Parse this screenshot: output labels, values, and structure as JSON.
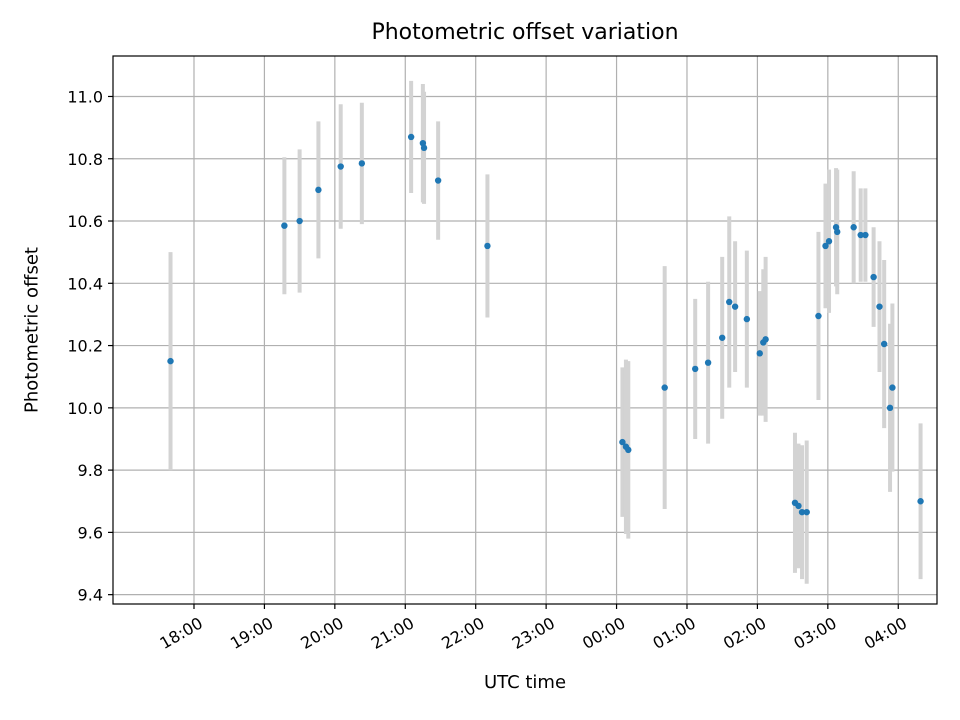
{
  "chart_data": {
    "type": "scatter",
    "title": "Photometric offset variation",
    "xlabel": "UTC time",
    "ylabel": "Photometric offset",
    "x_ticks": [
      "18:00",
      "19:00",
      "20:00",
      "21:00",
      "22:00",
      "23:00",
      "00:00",
      "01:00",
      "02:00",
      "03:00",
      "04:00"
    ],
    "y_ticks": [
      "9.4",
      "9.6",
      "9.8",
      "10.0",
      "10.2",
      "10.4",
      "10.6",
      "10.8",
      "11.0"
    ],
    "grid": true,
    "colors": {
      "point": "#1f77b4",
      "errorbar": "#d3d3d3",
      "grid": "#b0b0b0"
    },
    "x_start": "17:00",
    "x_range_hours": [
      -0.15,
      11.55
    ],
    "ylim": [
      9.37,
      11.13
    ],
    "series": [
      {
        "x": [
          "17:40",
          "19:17",
          "19:30",
          "19:46",
          "20:05",
          "20:23",
          "21:05",
          "21:15",
          "21:16",
          "21:28",
          "22:10",
          "00:05",
          "00:08",
          "00:10",
          "00:41",
          "01:07",
          "01:18",
          "01:30",
          "01:36",
          "01:41",
          "01:51",
          "02:02",
          "02:05",
          "02:07",
          "02:32",
          "02:35",
          "02:38",
          "02:42",
          "02:52",
          "02:58",
          "03:01",
          "03:07",
          "03:08",
          "03:22",
          "03:28",
          "03:32",
          "03:39",
          "03:44",
          "03:48",
          "03:53",
          "03:55",
          "04:19"
        ],
        "y": [
          10.15,
          10.585,
          10.6,
          10.7,
          10.775,
          10.785,
          10.87,
          10.85,
          10.835,
          10.73,
          10.52,
          9.89,
          9.875,
          9.865,
          10.065,
          10.125,
          10.145,
          10.225,
          10.34,
          10.325,
          10.285,
          10.175,
          10.21,
          10.22,
          9.695,
          9.685,
          9.665,
          9.665,
          10.295,
          10.52,
          10.535,
          10.58,
          10.565,
          10.58,
          10.555,
          10.555,
          10.42,
          10.325,
          10.205,
          10.0,
          10.065,
          9.7
        ],
        "err": [
          0.35,
          0.22,
          0.23,
          0.22,
          0.2,
          0.195,
          0.18,
          0.19,
          0.18,
          0.19,
          0.23,
          0.24,
          0.28,
          0.285,
          0.39,
          0.225,
          0.26,
          0.26,
          0.275,
          0.21,
          0.22,
          0.2,
          0.235,
          0.265,
          0.225,
          0.2,
          0.215,
          0.23,
          0.27,
          0.2,
          0.23,
          0.19,
          0.2,
          0.18,
          0.15,
          0.15,
          0.16,
          0.21,
          0.27,
          0.27,
          0.27,
          0.25
        ]
      }
    ]
  }
}
